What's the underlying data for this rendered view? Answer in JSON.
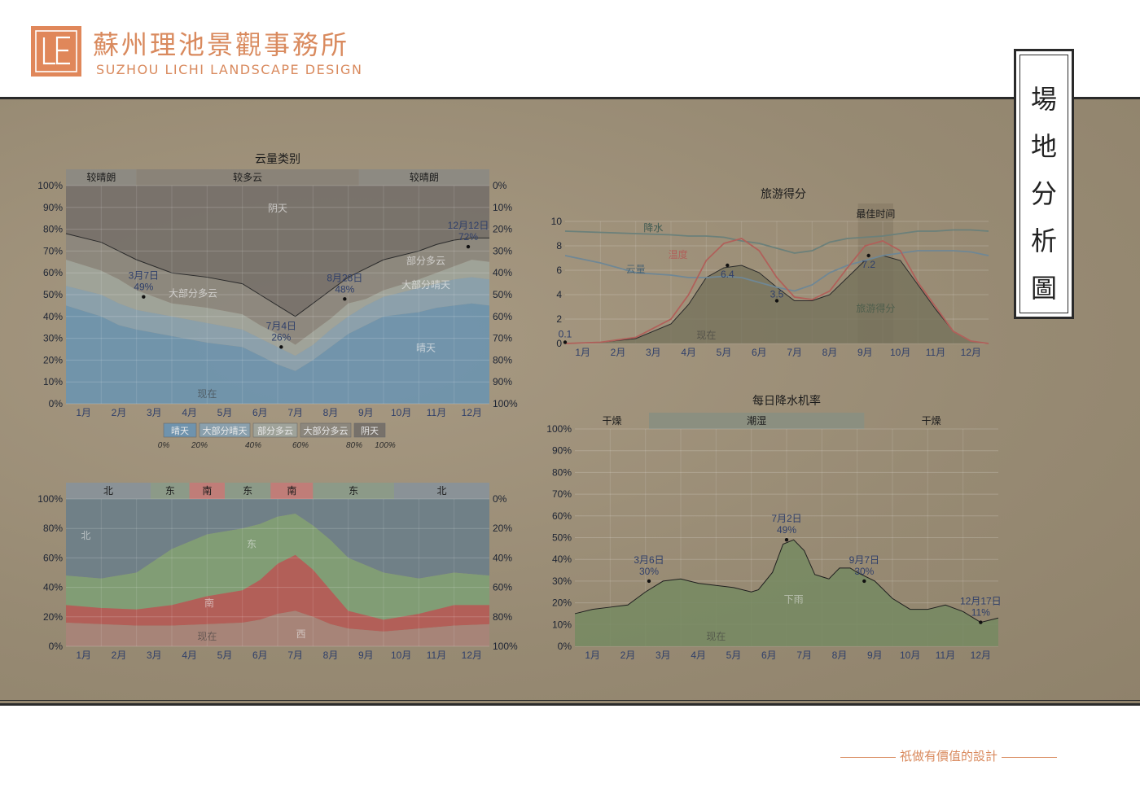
{
  "brand": {
    "name_cn": "蘇州理池景觀事務所",
    "name_en": "SUZHOU LICHI LANDSCAPE DESIGN",
    "logo_letters": "LE"
  },
  "page_title": "場地分析圖",
  "tagline": "祇做有價值的設計",
  "colors": {
    "brand": "#d98a5e",
    "paper": "#9c8f78",
    "sunny": "#6f93ad",
    "overcast": "#77716a",
    "north": "#6e8088",
    "east": "#7f9e75",
    "south": "#b35d56",
    "west": "#a88478",
    "rain": "#7c8e68"
  },
  "months": [
    "1月",
    "2月",
    "3月",
    "4月",
    "5月",
    "6月",
    "7月",
    "8月",
    "9月",
    "10月",
    "11月",
    "12月"
  ],
  "chart_data": [
    {
      "type": "area",
      "title": "云量类别",
      "ylim": [
        0,
        100
      ],
      "left_ticks": [
        "0%",
        "10%",
        "20%",
        "30%",
        "40%",
        "50%",
        "60%",
        "70%",
        "80%",
        "90%",
        "100%"
      ],
      "right_ticks": [
        "0%",
        "10%",
        "20%",
        "30%",
        "40%",
        "50%",
        "60%",
        "70%",
        "80%",
        "90%",
        "100%"
      ],
      "season_bands": [
        {
          "label": "较晴朗",
          "from": 0,
          "to": 2.0
        },
        {
          "label": "较多云",
          "from": 2.0,
          "to": 8.3
        },
        {
          "label": "较晴朗",
          "from": 8.3,
          "to": 12
        }
      ],
      "x": [
        0,
        1,
        1.5,
        2,
        3,
        4,
        5,
        5.5,
        6,
        6.5,
        7,
        7.5,
        8,
        8.5,
        9,
        10,
        10.5,
        11,
        11.5,
        12
      ],
      "series": [
        {
          "name": "晴天",
          "values": [
            45,
            40,
            36,
            34,
            31,
            28,
            26,
            22,
            18,
            15,
            20,
            26,
            32,
            36,
            40,
            42,
            44,
            45,
            46,
            45
          ]
        },
        {
          "name": "大部分晴天",
          "values": [
            54,
            50,
            46,
            43,
            40,
            37,
            34,
            30,
            26,
            22,
            27,
            34,
            40,
            45,
            49,
            53,
            55,
            57,
            58,
            57
          ]
        },
        {
          "name": "部分多云",
          "values": [
            66,
            61,
            57,
            52,
            46,
            44,
            41,
            36,
            32,
            27,
            33,
            39,
            46,
            48,
            52,
            57,
            60,
            63,
            66,
            65
          ]
        },
        {
          "name": "大部分多云",
          "values": [
            78,
            74,
            70,
            66,
            60,
            58,
            55,
            50,
            45,
            40,
            46,
            52,
            58,
            62,
            66,
            70,
            73,
            75,
            76,
            76
          ]
        },
        {
          "name": "阴天",
          "values": [
            100,
            100,
            100,
            100,
            100,
            100,
            100,
            100,
            100,
            100,
            100,
            100,
            100,
            100,
            100,
            100,
            100,
            100,
            100,
            100
          ]
        }
      ],
      "area_labels": [
        {
          "text": "阴天",
          "x": 6,
          "y": 88
        },
        {
          "text": "大部分多云",
          "x": 3.6,
          "y": 49
        },
        {
          "text": "部分多云",
          "x": 10.2,
          "y": 64
        },
        {
          "text": "大部分晴天",
          "x": 10.2,
          "y": 53
        },
        {
          "text": "晴天",
          "x": 10.2,
          "y": 24
        }
      ],
      "annotations": [
        {
          "date": "3月7日",
          "value": "49%",
          "x": 2.2,
          "y": 49
        },
        {
          "date": "7月4日",
          "value": "26%",
          "x": 6.1,
          "y": 26
        },
        {
          "date": "8月28日",
          "value": "48%",
          "x": 7.9,
          "y": 48
        },
        {
          "date": "12月12日",
          "value": "72%",
          "x": 11.4,
          "y": 72
        }
      ],
      "now_label": "现在",
      "legend": [
        {
          "name": "晴天",
          "tick": "0%"
        },
        {
          "name": "大部分晴天",
          "tick": "20%"
        },
        {
          "name": "部分多云",
          "tick": "40%"
        },
        {
          "name": "大部分多云",
          "tick": "60%"
        },
        {
          "name": "阴天",
          "tick": "80%"
        }
      ],
      "legend_end_tick": "100%"
    },
    {
      "type": "area",
      "ylim": [
        0,
        100
      ],
      "left_ticks": [
        "0%",
        "20%",
        "40%",
        "60%",
        "80%",
        "100%"
      ],
      "right_ticks": [
        "0%",
        "20%",
        "40%",
        "60%",
        "80%",
        "100%"
      ],
      "season_bands": [
        {
          "label": "北",
          "from": 0,
          "to": 2.4
        },
        {
          "label": "东",
          "from": 2.4,
          "to": 3.5
        },
        {
          "label": "南",
          "from": 3.5,
          "to": 4.5
        },
        {
          "label": "东",
          "from": 4.5,
          "to": 5.8
        },
        {
          "label": "南",
          "from": 5.8,
          "to": 7.0
        },
        {
          "label": "东",
          "from": 7.0,
          "to": 9.3
        },
        {
          "label": "北",
          "from": 9.3,
          "to": 12
        }
      ],
      "x": [
        0,
        1,
        2,
        3,
        4,
        5,
        5.5,
        6,
        6.5,
        7,
        7.5,
        8,
        9,
        10,
        11,
        12
      ],
      "series": [
        {
          "name": "西",
          "values": [
            16,
            15,
            14,
            14,
            15,
            16,
            18,
            22,
            24,
            20,
            15,
            12,
            10,
            12,
            14,
            15
          ]
        },
        {
          "name": "南",
          "values": [
            28,
            26,
            25,
            28,
            34,
            38,
            45,
            56,
            62,
            52,
            38,
            24,
            18,
            22,
            28,
            28
          ]
        },
        {
          "name": "东",
          "values": [
            48,
            46,
            50,
            66,
            76,
            80,
            83,
            88,
            90,
            82,
            72,
            60,
            50,
            46,
            50,
            48
          ]
        },
        {
          "name": "北",
          "values": [
            100,
            100,
            100,
            100,
            100,
            100,
            100,
            100,
            100,
            100,
            100,
            100,
            100,
            100,
            100,
            100
          ]
        }
      ],
      "area_labels": [
        {
          "text": "北",
          "x": 0.1,
          "y": 73
        },
        {
          "text": "东",
          "x": 4.8,
          "y": 67
        },
        {
          "text": "南",
          "x": 3.6,
          "y": 27
        },
        {
          "text": "西",
          "x": 6.2,
          "y": 6
        }
      ],
      "now_label": "现在"
    },
    {
      "type": "line",
      "title": "旅游得分",
      "ylim": [
        0,
        10
      ],
      "y_ticks": [
        "0",
        "2",
        "4",
        "6",
        "8",
        "10"
      ],
      "best_time_label": "最佳时间",
      "best_time_range": [
        8.3,
        9.3
      ],
      "x": [
        0,
        1,
        2,
        3,
        3.5,
        4,
        4.5,
        5,
        5.5,
        6,
        6.5,
        7,
        7.5,
        8,
        8.5,
        9,
        9.5,
        10,
        10.5,
        11,
        11.5,
        12
      ],
      "series": [
        {
          "name": "降水",
          "values": [
            9.2,
            9.1,
            9.0,
            8.9,
            8.8,
            8.8,
            8.7,
            8.4,
            8.2,
            7.8,
            7.4,
            7.6,
            8.3,
            8.6,
            8.7,
            8.8,
            9.0,
            9.2,
            9.2,
            9.3,
            9.3,
            9.2
          ]
        },
        {
          "name": "云量",
          "values": [
            7.2,
            6.6,
            5.8,
            5.6,
            5.4,
            5.4,
            5.5,
            5.4,
            5.0,
            4.6,
            4.3,
            4.8,
            5.8,
            6.4,
            6.8,
            7.2,
            7.4,
            7.6,
            7.6,
            7.6,
            7.5,
            7.2
          ]
        },
        {
          "name": "温度",
          "values": [
            0,
            0.1,
            0.5,
            2,
            4,
            6.8,
            8.2,
            8.6,
            7.6,
            5.4,
            3.8,
            3.6,
            4.3,
            6.2,
            8.0,
            8.4,
            7.6,
            5.0,
            3.0,
            1.0,
            0.2,
            0
          ]
        },
        {
          "name": "旅游得分",
          "values": [
            0,
            0.1,
            0.4,
            1.6,
            3.2,
            5.4,
            6.2,
            6.4,
            5.8,
            4.6,
            3.5,
            3.5,
            4.0,
            5.4,
            6.8,
            7.2,
            6.8,
            4.8,
            2.8,
            1.0,
            0.2,
            0
          ]
        }
      ],
      "series_labels": [
        {
          "text": "降水",
          "x": 2.5,
          "y": 9.2
        },
        {
          "text": "温度",
          "x": 3.2,
          "y": 7.0
        },
        {
          "text": "云量",
          "x": 2.0,
          "y": 5.8
        },
        {
          "text": "旅游得分",
          "x": 8.8,
          "y": 2.6
        }
      ],
      "annotations": [
        {
          "value": "0.1",
          "x": 0,
          "y": 0.1
        },
        {
          "value": "6.4",
          "x": 4.6,
          "y": 6.4
        },
        {
          "value": "3.5",
          "x": 6.0,
          "y": 3.5
        },
        {
          "value": "7.2",
          "x": 8.6,
          "y": 7.2
        }
      ],
      "now_label": "现在"
    },
    {
      "type": "area",
      "title": "每日降水机率",
      "ylim": [
        0,
        100
      ],
      "y_ticks": [
        "0%",
        "10%",
        "20%",
        "30%",
        "40%",
        "50%",
        "60%",
        "70%",
        "80%",
        "90%",
        "100%"
      ],
      "season_bands": [
        {
          "label": "干燥",
          "from": 0,
          "to": 2.1
        },
        {
          "label": "潮湿",
          "from": 2.1,
          "to": 8.2
        },
        {
          "label": "干燥",
          "from": 8.2,
          "to": 12
        }
      ],
      "x": [
        0,
        0.5,
        1,
        1.5,
        2,
        2.5,
        3,
        3.5,
        4,
        4.5,
        5,
        5.2,
        5.6,
        5.9,
        6.2,
        6.5,
        6.8,
        7.2,
        7.5,
        7.8,
        8,
        8.5,
        9,
        9.5,
        10,
        10.5,
        11,
        11.5,
        12
      ],
      "series": [
        {
          "name": "下雨",
          "values": [
            15,
            17,
            18,
            19,
            25,
            30,
            31,
            29,
            28,
            27,
            25,
            26,
            34,
            47,
            49,
            44,
            33,
            31,
            36,
            36,
            34,
            30,
            22,
            17,
            17,
            19,
            16,
            11,
            13
          ]
        }
      ],
      "area_labels": [
        {
          "text": "下雨",
          "x": 6.2,
          "y": 20
        }
      ],
      "annotations": [
        {
          "date": "3月6日",
          "value": "30%",
          "x": 2.1,
          "y": 30
        },
        {
          "date": "7月2日",
          "value": "49%",
          "x": 6.0,
          "y": 49
        },
        {
          "date": "9月7日",
          "value": "30%",
          "x": 8.2,
          "y": 30
        },
        {
          "date": "12月17日",
          "value": "11%",
          "x": 11.5,
          "y": 11
        }
      ],
      "now_label": "现在"
    }
  ]
}
